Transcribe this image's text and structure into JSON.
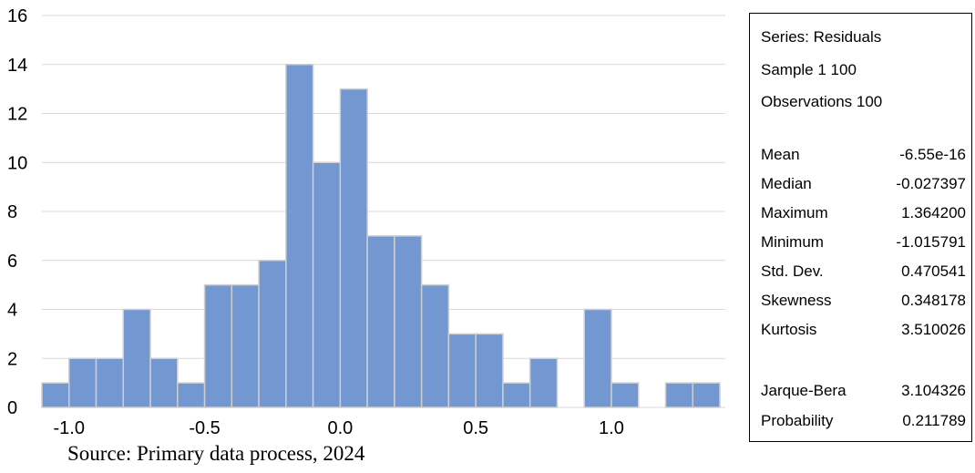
{
  "chart_data": {
    "type": "bar",
    "title": "",
    "xlabel": "",
    "ylabel": "",
    "ylim": [
      0,
      16
    ],
    "yticks": [
      0,
      2,
      4,
      6,
      8,
      10,
      12,
      14,
      16
    ],
    "xticks": [
      -1.0,
      -0.5,
      0.0,
      0.5,
      1.0
    ],
    "xtick_labels": [
      "-1.0",
      "-0.5",
      "0.0",
      "0.5",
      "1.0"
    ],
    "bin_width": 0.1,
    "bin_left_edges": [
      -1.1,
      -1.0,
      -0.9,
      -0.8,
      -0.7,
      -0.6,
      -0.5,
      -0.4,
      -0.3,
      -0.2,
      -0.1,
      0.0,
      0.1,
      0.2,
      0.3,
      0.4,
      0.5,
      0.6,
      0.7,
      0.8,
      0.9,
      1.0,
      1.1,
      1.2,
      1.3
    ],
    "values": [
      1,
      2,
      2,
      4,
      2,
      1,
      5,
      5,
      6,
      14,
      10,
      13,
      7,
      7,
      5,
      3,
      3,
      1,
      2,
      0,
      4,
      1,
      0,
      1,
      1
    ],
    "bar_color": "#7397d1",
    "grid": "horizontal"
  },
  "stats": {
    "header": [
      "Series: Residuals",
      "Sample 1 100",
      "Observations 100"
    ],
    "rows": [
      {
        "label": "Mean",
        "value": "-6.55e-16"
      },
      {
        "label": "Median",
        "value": "-0.027397"
      },
      {
        "label": "Maximum",
        "value": "1.364200"
      },
      {
        "label": "Minimum",
        "value": "-1.015791"
      },
      {
        "label": "Std. Dev.",
        "value": "0.470541"
      },
      {
        "label": "Skewness",
        "value": "0.348178"
      },
      {
        "label": "Kurtosis",
        "value": "3.510026"
      },
      {
        "label": "Jarque-Bera",
        "value": "3.104326"
      },
      {
        "label": "Probability",
        "value": "0.211789"
      }
    ]
  },
  "source": "Source: Primary data process, 2024"
}
